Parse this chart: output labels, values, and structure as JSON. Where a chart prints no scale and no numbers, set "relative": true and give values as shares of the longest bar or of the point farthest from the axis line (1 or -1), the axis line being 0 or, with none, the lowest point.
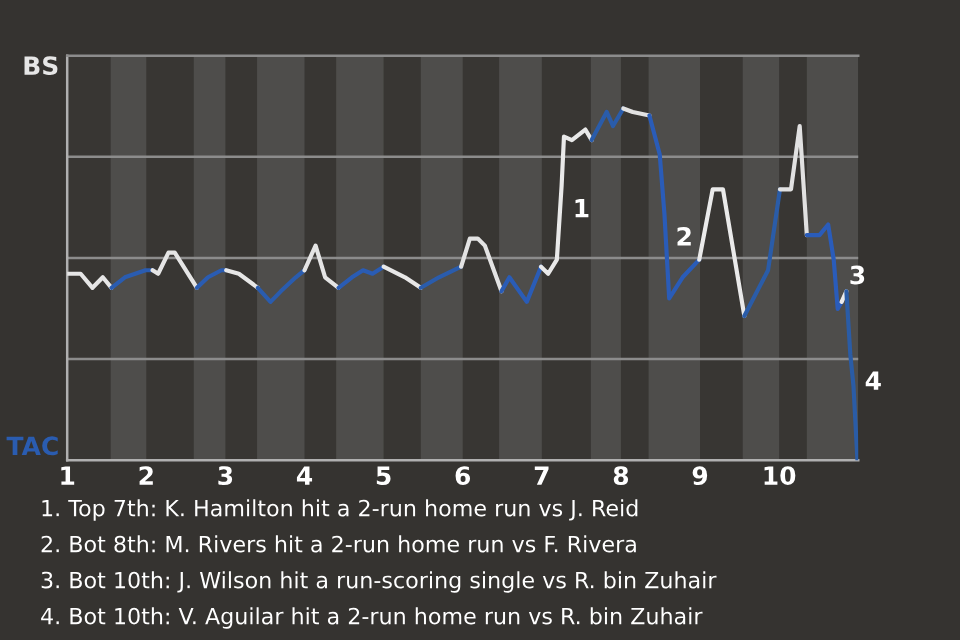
{
  "chart_data": {
    "type": "line",
    "relative": true,
    "tick_labels": "x",
    "series": [
      {
        "color": "#e6e6e6",
        "x": [
          1.0,
          1.17,
          1.32,
          1.45,
          1.56
        ],
        "values": [
          0.53,
          0.53,
          0.49,
          0.52,
          0.49
        ]
      },
      {
        "color": "#2a5cb0",
        "x": [
          1.56,
          1.73,
          1.99,
          2.08
        ],
        "values": [
          0.49,
          0.52,
          0.54,
          0.54
        ]
      },
      {
        "color": "#e5e5e5",
        "x": [
          2.08,
          2.15,
          2.28,
          2.36,
          2.64
        ],
        "values": [
          0.54,
          0.53,
          0.59,
          0.59,
          0.49
        ]
      },
      {
        "color": "#2a5cb2",
        "x": [
          2.64,
          2.78,
          2.95,
          3.01
        ],
        "values": [
          0.49,
          0.52,
          0.54,
          0.54
        ]
      },
      {
        "color": "#e7e7e7",
        "x": [
          3.01,
          3.17,
          3.41
        ],
        "values": [
          0.54,
          0.53,
          0.49
        ]
      },
      {
        "color": "#2a5cae",
        "x": [
          3.41,
          3.57,
          3.7,
          3.89,
          4.0
        ],
        "values": [
          0.49,
          0.45,
          0.48,
          0.52,
          0.54
        ]
      },
      {
        "color": "#e4e4e4",
        "x": [
          4.0,
          4.14,
          4.26,
          4.43
        ],
        "values": [
          0.54,
          0.61,
          0.52,
          0.49
        ]
      },
      {
        "color": "#2a5cb4",
        "x": [
          4.43,
          4.6,
          4.74,
          4.86,
          5.0
        ],
        "values": [
          0.49,
          0.52,
          0.54,
          0.53,
          0.55
        ]
      },
      {
        "color": "#e8e8e8",
        "x": [
          5.0,
          5.27,
          5.47
        ],
        "values": [
          0.55,
          0.52,
          0.49
        ]
      },
      {
        "color": "#2a5cac",
        "x": [
          5.47,
          5.7,
          5.98
        ],
        "values": [
          0.49,
          0.52,
          0.55
        ]
      },
      {
        "color": "#e3e3e3",
        "x": [
          5.98,
          6.09,
          6.19,
          6.28,
          6.49
        ],
        "values": [
          0.55,
          0.63,
          0.63,
          0.61,
          0.48
        ]
      },
      {
        "color": "#2a5cb6",
        "x": [
          6.49,
          6.59,
          6.81,
          6.99
        ],
        "values": [
          0.48,
          0.52,
          0.45,
          0.55
        ]
      },
      {
        "color": "#e9e9e9",
        "x": [
          6.99,
          7.08,
          7.19,
          7.25,
          7.28,
          7.38,
          7.55,
          7.63
        ],
        "values": [
          0.55,
          0.53,
          0.57,
          0.78,
          0.92,
          0.91,
          0.94,
          0.91
        ]
      },
      {
        "color": "#2a5caa",
        "x": [
          7.63,
          7.82,
          7.9,
          8.03
        ],
        "values": [
          0.91,
          0.99,
          0.95,
          1.0
        ]
      },
      {
        "color": "#e2e2e2",
        "x": [
          8.03,
          8.15,
          8.36
        ],
        "values": [
          1.0,
          0.99,
          0.98
        ]
      },
      {
        "color": "#2a5cb8",
        "x": [
          8.36,
          8.49,
          8.55,
          8.59,
          8.61,
          8.78,
          8.99
        ],
        "values": [
          0.98,
          0.87,
          0.7,
          0.54,
          0.46,
          0.52,
          0.57
        ]
      },
      {
        "color": "#eaeaea",
        "x": [
          8.99,
          9.16,
          9.29,
          9.56
        ],
        "values": [
          0.57,
          0.77,
          0.77,
          0.41
        ]
      },
      {
        "color": "#2a5ca8",
        "x": [
          9.56,
          9.86,
          10.01
        ],
        "values": [
          0.41,
          0.54,
          0.77
        ]
      },
      {
        "color": "#e1e1e1",
        "x": [
          10.01,
          10.15,
          10.26,
          10.35
        ],
        "values": [
          0.77,
          0.77,
          0.95,
          0.64
        ]
      },
      {
        "color": "#2a5cba",
        "x": [
          10.35,
          10.51,
          10.62,
          10.69,
          10.74,
          10.79
        ],
        "values": [
          0.64,
          0.64,
          0.67,
          0.57,
          0.43,
          0.45
        ]
      },
      {
        "color": "#ebebeb",
        "x": [
          10.79,
          10.85
        ],
        "values": [
          0.45,
          0.48
        ]
      },
      {
        "color": "#2a5ca6",
        "x": [
          10.85,
          10.9,
          10.94,
          10.99
        ],
        "values": [
          0.48,
          0.3,
          0.21,
          0.0
        ]
      }
    ],
    "xlim": [
      1,
      11
    ],
    "xticks": [
      1,
      2,
      3,
      4,
      5,
      6,
      7,
      8,
      9,
      10
    ],
    "grid": "y",
    "bands": [
      {
        "axis": "x",
        "from": 1.55,
        "to": 2.0,
        "color": "#4e4d4b"
      },
      {
        "axis": "x",
        "from": 2.6,
        "to": 3.0,
        "color": "#4e4d4b"
      },
      {
        "axis": "x",
        "from": 3.4,
        "to": 4.0,
        "color": "#4e4d4b"
      },
      {
        "axis": "x",
        "from": 4.4,
        "to": 5.0,
        "color": "#4e4d4b"
      },
      {
        "axis": "x",
        "from": 5.47,
        "to": 6.0,
        "color": "#4e4d4b"
      },
      {
        "axis": "x",
        "from": 6.46,
        "to": 7.0,
        "color": "#4e4d4b"
      },
      {
        "axis": "x",
        "from": 7.62,
        "to": 8.0,
        "color": "#4e4d4b"
      },
      {
        "axis": "x",
        "from": 8.35,
        "to": 9.0,
        "color": "#4e4d4b"
      },
      {
        "axis": "x",
        "from": 9.54,
        "to": 10.0,
        "color": "#4e4d4b"
      },
      {
        "axis": "x",
        "from": 10.35,
        "to": 11.0,
        "color": "#4e4d4b"
      }
    ],
    "annotations": [
      "BS",
      "TAC",
      {
        "text": "1",
        "x": 7.25,
        "y": 0.71
      },
      {
        "text": "2",
        "x": 8.55,
        "y": 0.63
      },
      {
        "text": "3",
        "x": 10.74,
        "y": 0.52
      },
      {
        "text": "4",
        "x": 10.94,
        "y": 0.22
      },
      "1. Top 7th: K. Hamilton hit a 2-run home run vs J. Reid",
      "2. Bot 8th: M. Rivers hit a 2-run home run vs F. Rivera",
      "3. Bot 10th: J. Wilson hit a run-scoring single vs R. bin Zuhair",
      "4. Bot 10th: V. Aguilar hit a 2-run home run vs R. bin Zuhair"
    ]
  }
}
